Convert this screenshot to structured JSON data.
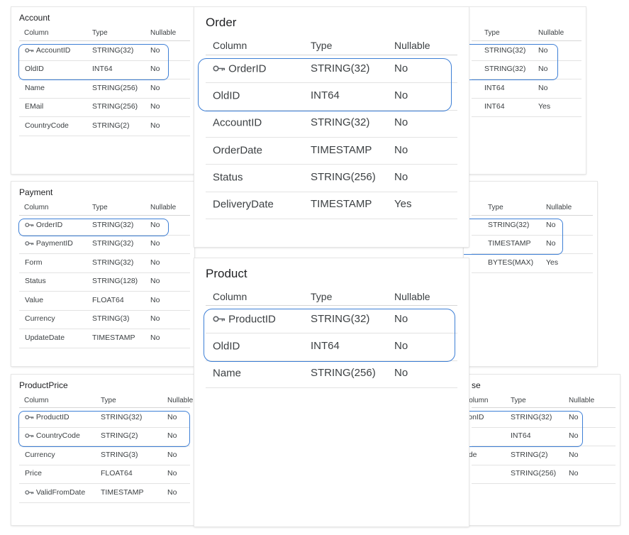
{
  "headers": {
    "column": "Column",
    "type": "Type",
    "nullable": "Nullable"
  },
  "tables": [
    {
      "id": "account",
      "title": "Account",
      "size": "small",
      "rows": [
        {
          "column": "AccountID",
          "type": "STRING(32)",
          "nullable": "No",
          "key": true,
          "icon": "key-icon"
        },
        {
          "column": "OldID",
          "type": "INT64",
          "nullable": "No",
          "key": false
        },
        {
          "column": "Name",
          "type": "STRING(256)",
          "nullable": "No",
          "key": false
        },
        {
          "column": "EMail",
          "type": "STRING(256)",
          "nullable": "No",
          "key": false
        },
        {
          "column": "CountryCode",
          "type": "STRING(2)",
          "nullable": "No",
          "key": false
        }
      ]
    },
    {
      "id": "right-top",
      "title": "",
      "size": "small",
      "rows": [
        {
          "column": "",
          "type": "STRING(32)",
          "nullable": "No",
          "key": false
        },
        {
          "column": "",
          "type": "STRING(32)",
          "nullable": "No",
          "key": false
        },
        {
          "column": "",
          "type": "INT64",
          "nullable": "No",
          "key": false
        },
        {
          "column": "",
          "type": "INT64",
          "nullable": "Yes",
          "key": false
        }
      ]
    },
    {
      "id": "payment",
      "title": "Payment",
      "size": "small",
      "rows": [
        {
          "column": "OrderID",
          "type": "STRING(32)",
          "nullable": "No",
          "key": true,
          "icon": "key-icon"
        },
        {
          "column": "PaymentID",
          "type": "STRING(32)",
          "nullable": "No",
          "key": true,
          "icon": "key-icon"
        },
        {
          "column": "Form",
          "type": "STRING(32)",
          "nullable": "No",
          "key": false
        },
        {
          "column": "Status",
          "type": "STRING(128)",
          "nullable": "No",
          "key": false
        },
        {
          "column": "Value",
          "type": "FLOAT64",
          "nullable": "No",
          "key": false
        },
        {
          "column": "Currency",
          "type": "STRING(3)",
          "nullable": "No",
          "key": false
        },
        {
          "column": "UpdateDate",
          "type": "TIMESTAMP",
          "nullable": "No",
          "key": false
        }
      ]
    },
    {
      "id": "right-middle",
      "title": "",
      "size": "small",
      "rows": [
        {
          "column": "",
          "type": "STRING(32)",
          "nullable": "No",
          "key": false
        },
        {
          "column": "",
          "type": "TIMESTAMP",
          "nullable": "No",
          "key": false
        },
        {
          "column": "",
          "type": "BYTES(MAX)",
          "nullable": "Yes",
          "key": false
        }
      ]
    },
    {
      "id": "productprice",
      "title": "ProductPrice",
      "size": "small",
      "rows": [
        {
          "column": "ProductID",
          "type": "STRING(32)",
          "nullable": "No",
          "key": true,
          "icon": "key-icon"
        },
        {
          "column": "CountryCode",
          "type": "STRING(2)",
          "nullable": "No",
          "key": true,
          "icon": "key-icon"
        },
        {
          "column": "Currency",
          "type": "STRING(3)",
          "nullable": "No",
          "key": false
        },
        {
          "column": "Price",
          "type": "FLOAT64",
          "nullable": "No",
          "key": false
        },
        {
          "column": "ValidFromDate",
          "type": "TIMESTAMP",
          "nullable": "No",
          "key": true,
          "icon": "key-icon"
        }
      ]
    },
    {
      "id": "right-bottom",
      "title": "se",
      "size": "small",
      "rows": [
        {
          "column": "tionID",
          "type": "STRING(32)",
          "nullable": "No",
          "key": false
        },
        {
          "column": "",
          "type": "INT64",
          "nullable": "No",
          "key": false
        },
        {
          "column": "ode",
          "type": "STRING(2)",
          "nullable": "No",
          "key": false
        },
        {
          "column": "",
          "type": "STRING(256)",
          "nullable": "No",
          "key": false
        }
      ]
    },
    {
      "id": "order",
      "title": "Order",
      "size": "big",
      "rows": [
        {
          "column": "OrderID",
          "type": "STRING(32)",
          "nullable": "No",
          "key": true,
          "icon": "key-icon"
        },
        {
          "column": "OldID",
          "type": "INT64",
          "nullable": "No",
          "key": false
        },
        {
          "column": "AccountID",
          "type": "STRING(32)",
          "nullable": "No",
          "key": false
        },
        {
          "column": "OrderDate",
          "type": "TIMESTAMP",
          "nullable": "No",
          "key": false
        },
        {
          "column": "Status",
          "type": "STRING(256)",
          "nullable": "No",
          "key": false
        },
        {
          "column": "DeliveryDate",
          "type": "TIMESTAMP",
          "nullable": "Yes",
          "key": false
        }
      ]
    },
    {
      "id": "product",
      "title": "Product",
      "size": "big",
      "rows": [
        {
          "column": "ProductID",
          "type": "STRING(32)",
          "nullable": "No",
          "key": true,
          "icon": "key-icon"
        },
        {
          "column": "OldID",
          "type": "INT64",
          "nullable": "No",
          "key": false
        },
        {
          "column": "Name",
          "type": "STRING(256)",
          "nullable": "No",
          "key": false
        }
      ]
    }
  ],
  "colors": {
    "highlight": "#3d7fd6",
    "key_icon": "#5f6368"
  }
}
